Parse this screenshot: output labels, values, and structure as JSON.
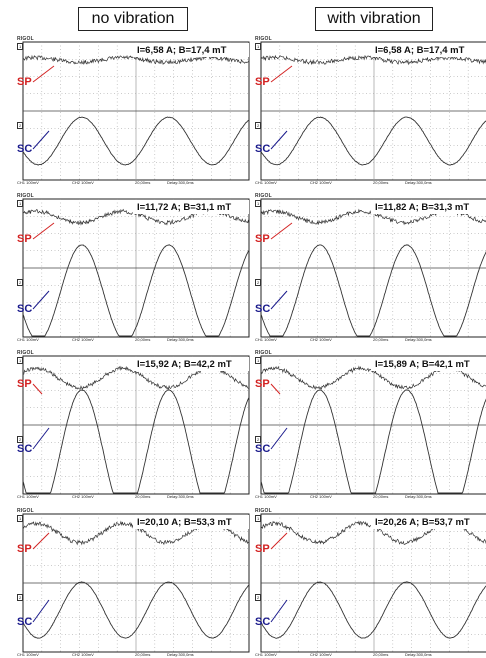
{
  "headers": {
    "left": "no vibration",
    "right": "with vibration"
  },
  "scope": {
    "brand": "RIGOL",
    "ch1_marker": "1",
    "ch2_marker": "2",
    "footer": {
      "ch1": "CH1 100mV",
      "ch2": "CH2 100mV",
      "time": "20,00ms",
      "delay": "Delay:300,0ms"
    }
  },
  "labels": {
    "sp": "SP",
    "sc": "SC"
  },
  "colors": {
    "sp": "#d32222",
    "sc": "#1a1a8c",
    "trace": "#333333",
    "grid": "#9a9a9a"
  },
  "chart_data": [
    {
      "type": "line",
      "readout": "I=6,58 A;   B=17,4 mT",
      "sp_amplitude": 0.15,
      "sc_amplitude": 0.85,
      "periods": 2.6
    },
    {
      "type": "line",
      "readout": "I=6,58 A;   B=17,4 mT",
      "sp_amplitude": 0.15,
      "sc_amplitude": 0.85,
      "periods": 2.6
    },
    {
      "type": "line",
      "readout": "I=11,72 A;   B=31,1 mT",
      "sp_amplitude": 0.35,
      "sc_amplitude": 1.6,
      "periods": 2.6
    },
    {
      "type": "line",
      "readout": "I=11,82 A;   B=31,3 mT",
      "sp_amplitude": 0.35,
      "sc_amplitude": 1.6,
      "periods": 2.6
    },
    {
      "type": "line",
      "readout": "I=15,92 A;   B=42,2 mT",
      "sp_amplitude": 0.6,
      "sc_amplitude": 2.1,
      "periods": 2.6
    },
    {
      "type": "line",
      "readout": "I=15,89 A;   B=42,1 mT",
      "sp_amplitude": 0.6,
      "sc_amplitude": 2.1,
      "periods": 2.6
    },
    {
      "type": "line",
      "readout": "I=20,10 A;   B=53,3 mT",
      "sp_amplitude": 0.6,
      "sc_amplitude": 1.0,
      "periods": 2.6
    },
    {
      "type": "line",
      "readout": "I=20,26 A;   B=53,7 mT",
      "sp_amplitude": 0.6,
      "sc_amplitude": 1.0,
      "periods": 2.6
    }
  ]
}
